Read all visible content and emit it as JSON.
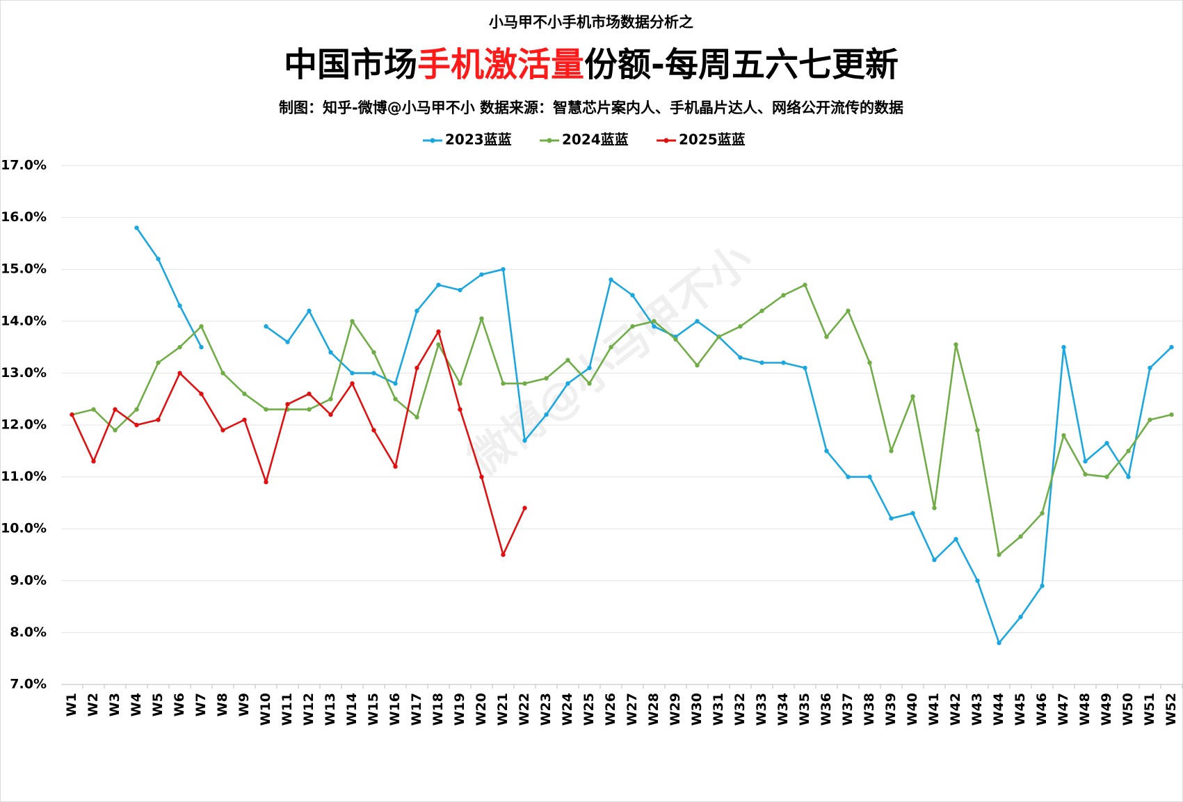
{
  "chart_data": {
    "type": "line",
    "supertitle": "小马甲不小手机市场数据分析之",
    "title_parts": [
      "中国市场",
      "手机激活量",
      "份额-每周五六七更新"
    ],
    "subtitle": "制图：知乎-微博@小马甲不小  数据来源：智慧芯片案内人、手机晶片达人、网络公开流传的数据",
    "watermark": "微博@小马甲不小",
    "categories": [
      "W1",
      "W2",
      "W3",
      "W4",
      "W5",
      "W6",
      "W7",
      "W8",
      "W9",
      "W10",
      "W11",
      "W12",
      "W13",
      "W14",
      "W15",
      "W16",
      "W17",
      "W18",
      "W19",
      "W20",
      "W21",
      "W22",
      "W23",
      "W24",
      "W25",
      "W26",
      "W27",
      "W28",
      "W29",
      "W30",
      "W31",
      "W32",
      "W33",
      "W34",
      "W35",
      "W36",
      "W37",
      "W38",
      "W39",
      "W40",
      "W41",
      "W42",
      "W43",
      "W44",
      "W45",
      "W46",
      "W47",
      "W48",
      "W49",
      "W50",
      "W51",
      "W52"
    ],
    "series": [
      {
        "name": "2023蓝蓝",
        "color": "#1aa7e0",
        "values": [
          null,
          null,
          null,
          15.8,
          15.2,
          14.3,
          13.5,
          null,
          null,
          13.9,
          13.6,
          14.2,
          13.4,
          13.0,
          13.0,
          12.8,
          14.2,
          14.7,
          14.6,
          14.9,
          15.0,
          11.7,
          12.2,
          12.8,
          13.1,
          14.8,
          14.5,
          13.9,
          13.7,
          14.0,
          13.7,
          13.3,
          13.2,
          13.2,
          13.1,
          11.5,
          11.0,
          11.0,
          10.2,
          10.3,
          9.4,
          9.8,
          9.0,
          7.8,
          8.3,
          8.9,
          13.5,
          11.3,
          11.65,
          11.0,
          13.1,
          13.5
        ]
      },
      {
        "name": "2024蓝蓝",
        "color": "#70ad47",
        "values": [
          12.2,
          12.3,
          11.9,
          12.3,
          13.2,
          13.5,
          13.9,
          13.0,
          12.6,
          12.3,
          12.3,
          12.3,
          12.5,
          14.0,
          13.4,
          12.5,
          12.15,
          13.55,
          12.8,
          14.05,
          12.8,
          12.8,
          12.9,
          13.25,
          12.8,
          13.5,
          13.9,
          14.0,
          13.65,
          13.15,
          13.7,
          13.9,
          14.2,
          14.5,
          14.7,
          13.7,
          14.2,
          13.2,
          11.5,
          12.55,
          10.4,
          13.55,
          11.9,
          9.5,
          9.85,
          10.3,
          11.8,
          11.05,
          11.0,
          11.5,
          12.1,
          12.2
        ]
      },
      {
        "name": "2025蓝蓝",
        "color": "#e01010",
        "values": [
          12.2,
          11.3,
          12.3,
          12.0,
          12.1,
          13.0,
          12.6,
          11.9,
          12.1,
          10.9,
          12.4,
          12.6,
          12.2,
          12.8,
          11.9,
          11.2,
          13.1,
          13.8,
          12.3,
          11.0,
          9.5,
          10.4,
          null,
          null,
          null,
          null,
          null,
          null,
          null,
          null,
          null,
          null,
          null,
          null,
          null,
          null,
          null,
          null,
          null,
          null,
          null,
          null,
          null,
          null,
          null,
          null,
          null,
          null,
          null,
          null,
          null,
          null
        ]
      }
    ],
    "ylim": [
      7,
      17
    ],
    "yticks": [
      {
        "value": 7,
        "label": "7.0%"
      },
      {
        "value": 8,
        "label": "8.0%"
      },
      {
        "value": 9,
        "label": "9.0%"
      },
      {
        "value": 10,
        "label": "10.0%"
      },
      {
        "value": 11,
        "label": "11.0%"
      },
      {
        "value": 12,
        "label": "12.0%"
      },
      {
        "value": 13,
        "label": "13.0%"
      },
      {
        "value": 14,
        "label": "14.0%"
      },
      {
        "value": 15,
        "label": "15.0%"
      },
      {
        "value": 16,
        "label": "16.0%"
      },
      {
        "value": 17,
        "label": "17.0%"
      }
    ],
    "grid": true,
    "legend": "top"
  }
}
